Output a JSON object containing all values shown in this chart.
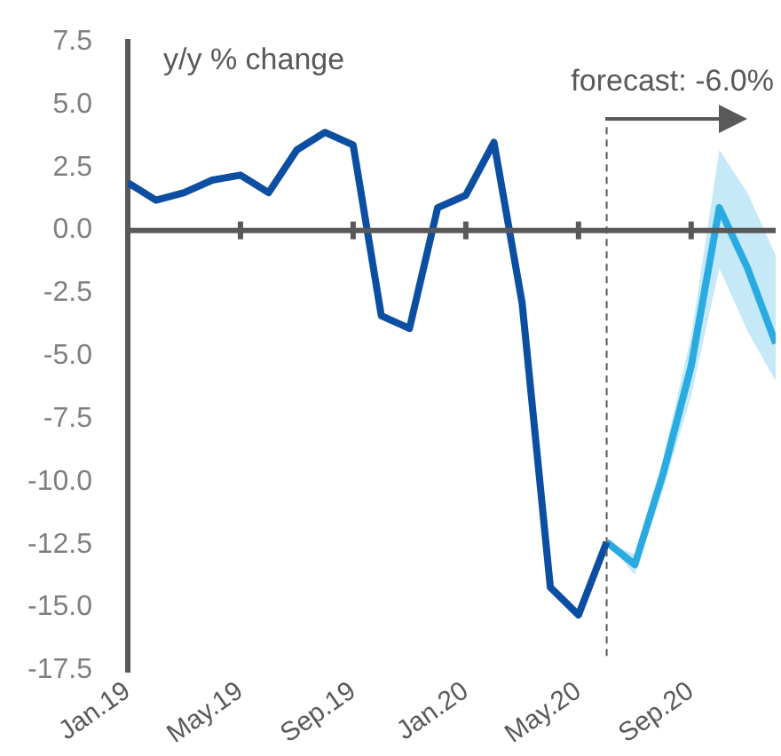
{
  "chart_data": {
    "type": "line",
    "ylabel": "y/y % change",
    "annotations": [
      "forecast: -6.0%"
    ],
    "xlim": [
      "2019-01",
      "2020-12"
    ],
    "xticks": [
      {
        "value": "2019-01",
        "label": "Jan.19"
      },
      {
        "value": "2019-05",
        "label": "May.19"
      },
      {
        "value": "2019-09",
        "label": "Sep.19"
      },
      {
        "value": "2020-01",
        "label": "Jan.20"
      },
      {
        "value": "2020-05",
        "label": "May.20"
      },
      {
        "value": "2020-09",
        "label": "Sep.20"
      }
    ],
    "ylim": [
      -17.5,
      7.5
    ],
    "yticks": [
      {
        "value": -17.5,
        "label": "-17.5"
      },
      {
        "value": -15,
        "label": "-15.0"
      },
      {
        "value": -12.5,
        "label": "-12.5"
      },
      {
        "value": -10,
        "label": "-10.0"
      },
      {
        "value": -7.5,
        "label": "-7.5"
      },
      {
        "value": -5,
        "label": "-5.0"
      },
      {
        "value": -2.5,
        "label": "-2.5"
      },
      {
        "value": 0,
        "label": "0.0"
      },
      {
        "value": 2.5,
        "label": "2.5"
      },
      {
        "value": 5,
        "label": "5.0"
      },
      {
        "value": 7.5,
        "label": "7.5"
      }
    ],
    "series": [
      {
        "color": "#0b4ea2",
        "x": [
          "2019-01",
          "2019-02",
          "2019-03",
          "2019-04",
          "2019-05",
          "2019-06",
          "2019-07",
          "2019-08",
          "2019-09",
          "2019-10",
          "2019-11",
          "2019-12",
          "2020-01",
          "2020-02",
          "2020-03",
          "2020-04",
          "2020-05",
          "2020-06"
        ],
        "values": [
          1.9,
          1.2,
          1.5,
          2.0,
          2.2,
          1.5,
          3.2,
          3.9,
          3.4,
          -3.4,
          -3.9,
          0.9,
          1.4,
          3.5,
          -2.9,
          -14.2,
          -15.3,
          -12.4
        ]
      },
      {
        "color": "#29abe2",
        "x": [
          "2020-06",
          "2020-07",
          "2020-08",
          "2020-09",
          "2020-10",
          "2020-11",
          "2020-12"
        ],
        "values": [
          -12.4,
          -13.3,
          -9.7,
          -5.4,
          0.9,
          -1.5,
          -4.5
        ],
        "lower": [
          -12.4,
          -13.7,
          -10.3,
          -6.6,
          -1.5,
          -4.0,
          -6.0
        ],
        "upper": [
          -12.4,
          -12.9,
          -9.1,
          -4.2,
          3.2,
          1.5,
          -1.0
        ]
      }
    ],
    "ref_lines": [
      {
        "axis": "x",
        "value": "2020-06",
        "color": "#595959",
        "line_style": "dashed"
      }
    ]
  }
}
